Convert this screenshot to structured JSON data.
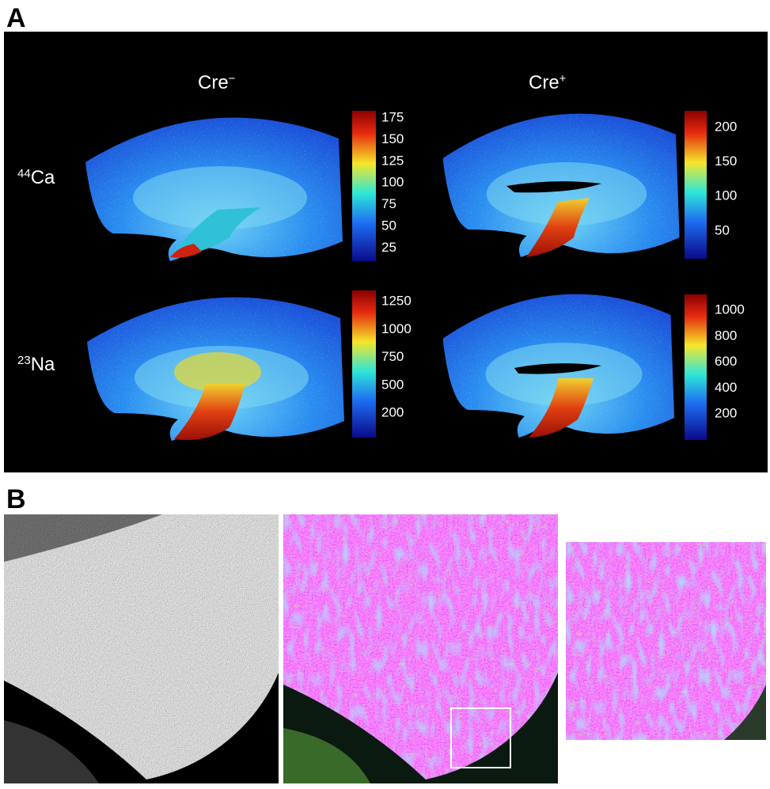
{
  "panel_a": {
    "label": "A",
    "columns": [
      {
        "text": "Cre",
        "sup": "−"
      },
      {
        "text": "Cre",
        "sup": "+"
      }
    ],
    "rows": [
      {
        "sup": "44",
        "text": "Ca"
      },
      {
        "sup": "23",
        "text": "Na"
      }
    ],
    "colorbars": [
      {
        "ticks": [
          175,
          150,
          125,
          100,
          75,
          50,
          25
        ]
      },
      {
        "ticks": [
          200,
          150,
          100,
          50
        ]
      },
      {
        "ticks": [
          1250,
          1000,
          750,
          500,
          200
        ]
      },
      {
        "ticks": [
          1000,
          800,
          600,
          400,
          200
        ]
      }
    ]
  },
  "panel_b": {
    "label": "B"
  }
}
